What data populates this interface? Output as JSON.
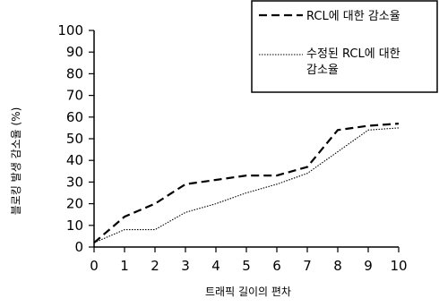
{
  "chart_data": {
    "type": "line",
    "title": "",
    "xlabel": "트래픽 길이의 편차",
    "ylabel": "블로킹 발생 감소율 (%)",
    "x": [
      0,
      1,
      2,
      3,
      4,
      5,
      6,
      7,
      8,
      9,
      10
    ],
    "xlim": [
      0,
      10
    ],
    "ylim": [
      0,
      100
    ],
    "yticks": [
      0,
      10,
      20,
      30,
      40,
      50,
      60,
      70,
      80,
      90,
      100
    ],
    "grid": false,
    "legend_position": "top-right",
    "series": [
      {
        "name": "RCL에 대한 감소율",
        "style": "dashed",
        "color": "#000000",
        "values": [
          2,
          14,
          20,
          29,
          31,
          33,
          33,
          37,
          54,
          56,
          57
        ]
      },
      {
        "name": "수정된 RCL에 대한 감소율",
        "style": "dotted",
        "color": "#000000",
        "values": [
          2,
          8,
          8,
          16,
          20,
          25,
          29,
          34,
          44,
          54,
          55
        ]
      }
    ]
  }
}
